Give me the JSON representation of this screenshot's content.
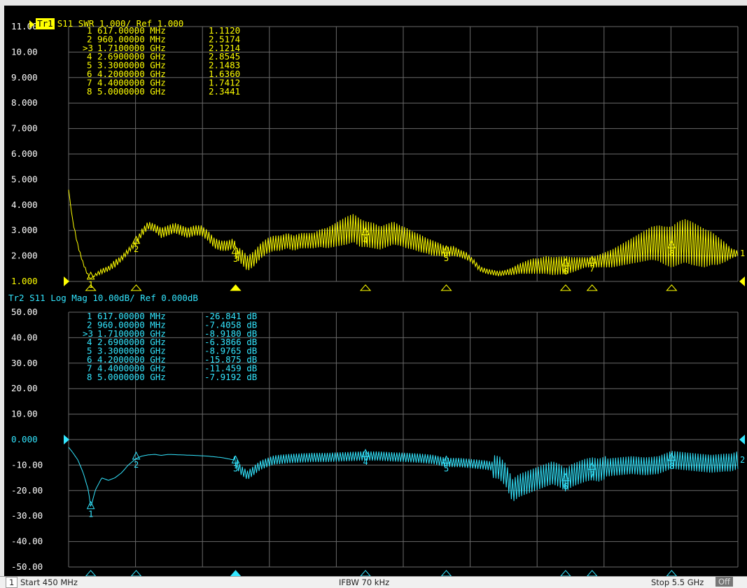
{
  "trace1": {
    "badge": "Tr1",
    "title": "S11 SWR 1.000/ Ref 1.000",
    "color": "#ffff00",
    "yticks": [
      "11.00",
      "10.00",
      "9.000",
      "8.000",
      "7.000",
      "6.000",
      "5.000",
      "4.000",
      "3.000",
      "2.000",
      "1.000"
    ],
    "end_label": "1",
    "markers": [
      {
        "id": "1",
        "freq": "617.00000 MHz",
        "value": "1.1120"
      },
      {
        "id": "2",
        "freq": "960.00000 MHz",
        "value": "2.5174"
      },
      {
        "id": ">3",
        "freq": "1.7100000 GHz",
        "value": "2.1214"
      },
      {
        "id": "4",
        "freq": "2.6900000 GHz",
        "value": "2.8545"
      },
      {
        "id": "5",
        "freq": "3.3000000 GHz",
        "value": "2.1483"
      },
      {
        "id": "6",
        "freq": "4.2000000 GHz",
        "value": "1.6360"
      },
      {
        "id": "7",
        "freq": "4.4000000 GHz",
        "value": "1.7412"
      },
      {
        "id": "8",
        "freq": "5.0000000 GHz",
        "value": "2.3441"
      }
    ]
  },
  "trace2": {
    "title": "Tr2 S11 Log Mag 10.00dB/ Ref 0.000dB",
    "color": "#33e6ff",
    "yticks": [
      "50.00",
      "40.00",
      "30.00",
      "20.00",
      "10.00",
      "0.000",
      "-10.00",
      "-20.00",
      "-30.00",
      "-40.00",
      "-50.00"
    ],
    "end_label": "2",
    "markers": [
      {
        "id": "1",
        "freq": "617.00000 MHz",
        "value": "-26.841 dB"
      },
      {
        "id": "2",
        "freq": "960.00000 MHz",
        "value": "-7.4058 dB"
      },
      {
        "id": ">3",
        "freq": "1.7100000 GHz",
        "value": "-8.9180 dB"
      },
      {
        "id": "4",
        "freq": "2.6900000 GHz",
        "value": "-6.3866 dB"
      },
      {
        "id": "5",
        "freq": "3.3000000 GHz",
        "value": "-8.9765 dB"
      },
      {
        "id": "6",
        "freq": "4.2000000 GHz",
        "value": "-15.875 dB"
      },
      {
        "id": "7",
        "freq": "4.4000000 GHz",
        "value": "-11.459 dB"
      },
      {
        "id": "8",
        "freq": "5.0000000 GHz",
        "value": "-7.9192 dB"
      }
    ]
  },
  "status": {
    "channel": "1",
    "start": "Start 450 MHz",
    "ifbw": "IFBW 70 kHz",
    "stop": "Stop 5.5 GHz",
    "off": "Off"
  },
  "chart_data": [
    {
      "type": "line",
      "title": "S11 SWR 1.000/ Ref 1.000",
      "xlim_mhz": [
        450,
        5500
      ],
      "ylim": [
        1,
        11
      ],
      "grid": true,
      "color": "#ffff00",
      "markers_mhz": [
        617,
        960,
        1710,
        2690,
        3300,
        4200,
        4400,
        5000
      ],
      "markers_y": [
        1.112,
        2.5174,
        2.1214,
        2.8545,
        2.1483,
        1.636,
        1.7412,
        2.3441
      ],
      "x_mhz": [
        450,
        480,
        520,
        560,
        600,
        617,
        650,
        700,
        750,
        800,
        850,
        900,
        960,
        1000,
        1050,
        1100,
        1150,
        1200,
        1250,
        1300,
        1350,
        1400,
        1450,
        1500,
        1550,
        1600,
        1650,
        1700,
        1710,
        1750,
        1800,
        1850,
        1900,
        1950,
        2000,
        2050,
        2100,
        2150,
        2200,
        2250,
        2300,
        2350,
        2400,
        2450,
        2500,
        2550,
        2600,
        2650,
        2690,
        2750,
        2800,
        2850,
        2900,
        2950,
        3000,
        3050,
        3100,
        3150,
        3200,
        3250,
        3300,
        3350,
        3400,
        3450,
        3500,
        3550,
        3600,
        3650,
        3700,
        3750,
        3800,
        3850,
        3900,
        3950,
        4000,
        4050,
        4100,
        4150,
        4200,
        4250,
        4300,
        4350,
        4400,
        4450,
        4500,
        4550,
        4600,
        4650,
        4700,
        4750,
        4800,
        4850,
        4900,
        4950,
        5000,
        5050,
        5100,
        5150,
        5200,
        5250,
        5300,
        5350,
        5400,
        5450,
        5500
      ],
      "y": [
        4.6,
        3.4,
        2.4,
        1.7,
        1.2,
        1.112,
        1.25,
        1.4,
        1.5,
        1.7,
        1.9,
        2.2,
        2.5174,
        2.9,
        3.2,
        3.1,
        2.9,
        3.0,
        3.1,
        3.0,
        2.9,
        3.0,
        3.0,
        2.8,
        2.5,
        2.4,
        2.4,
        2.5,
        2.1214,
        2.0,
        1.7,
        1.9,
        2.2,
        2.4,
        2.5,
        2.5,
        2.6,
        2.5,
        2.6,
        2.6,
        2.6,
        2.7,
        2.7,
        2.8,
        2.9,
        3.0,
        3.1,
        2.9,
        2.8545,
        2.8,
        2.7,
        2.8,
        2.9,
        2.8,
        2.7,
        2.6,
        2.5,
        2.4,
        2.3,
        2.25,
        2.1483,
        2.2,
        2.1,
        2.0,
        1.8,
        1.5,
        1.4,
        1.35,
        1.3,
        1.35,
        1.4,
        1.5,
        1.55,
        1.6,
        1.6,
        1.65,
        1.6,
        1.62,
        1.636,
        1.65,
        1.7,
        1.75,
        1.7412,
        1.8,
        1.85,
        1.9,
        2.0,
        2.1,
        2.2,
        2.3,
        2.4,
        2.5,
        2.5,
        2.4,
        2.3441,
        2.5,
        2.6,
        2.5,
        2.4,
        2.3,
        2.3,
        2.2,
        2.15,
        2.1,
        2.1
      ],
      "ripple": [
        0,
        0.05,
        0.05,
        0.05,
        0.05,
        0,
        0.05,
        0.1,
        0.1,
        0.15,
        0.1,
        0.1,
        0.1,
        0.15,
        0.15,
        0.15,
        0.2,
        0.2,
        0.2,
        0.2,
        0.2,
        0.2,
        0.2,
        0.2,
        0.2,
        0.2,
        0.2,
        0.2,
        0.2,
        0.3,
        0.3,
        0.3,
        0.3,
        0.3,
        0.3,
        0.3,
        0.3,
        0.3,
        0.3,
        0.3,
        0.3,
        0.35,
        0.4,
        0.45,
        0.5,
        0.55,
        0.55,
        0.55,
        0.5,
        0.5,
        0.45,
        0.45,
        0.45,
        0.4,
        0.4,
        0.35,
        0.35,
        0.3,
        0.3,
        0.25,
        0.2,
        0.2,
        0.15,
        0.15,
        0.1,
        0.1,
        0.1,
        0.1,
        0.1,
        0.1,
        0.15,
        0.2,
        0.25,
        0.3,
        0.3,
        0.35,
        0.35,
        0.35,
        0.35,
        0.3,
        0.25,
        0.2,
        0.2,
        0.25,
        0.3,
        0.35,
        0.4,
        0.45,
        0.5,
        0.55,
        0.6,
        0.65,
        0.7,
        0.75,
        0.8,
        0.85,
        0.85,
        0.85,
        0.8,
        0.75,
        0.65,
        0.55,
        0.4,
        0.2,
        0.1
      ]
    },
    {
      "type": "line",
      "title": "Tr2 S11 Log Mag 10.00dB/ Ref 0.000dB",
      "xlim_mhz": [
        450,
        5500
      ],
      "ylim": [
        -50,
        50
      ],
      "grid": true,
      "color": "#33e6ff",
      "markers_mhz": [
        617,
        960,
        1710,
        2690,
        3300,
        4200,
        4400,
        5000
      ],
      "markers_y": [
        -26.841,
        -7.4058,
        -8.918,
        -6.3866,
        -8.9765,
        -15.875,
        -11.459,
        -7.9192
      ],
      "x_mhz": [
        450,
        480,
        520,
        560,
        600,
        617,
        650,
        700,
        750,
        800,
        850,
        900,
        960,
        1000,
        1050,
        1100,
        1150,
        1200,
        1300,
        1400,
        1500,
        1600,
        1650,
        1700,
        1710,
        1750,
        1800,
        1850,
        1900,
        2000,
        2100,
        2200,
        2300,
        2400,
        2500,
        2600,
        2690,
        2800,
        2900,
        3000,
        3100,
        3200,
        3300,
        3400,
        3500,
        3600,
        3700,
        3750,
        3800,
        3850,
        3900,
        3950,
        4000,
        4050,
        4100,
        4150,
        4200,
        4250,
        4300,
        4350,
        4400,
        4450,
        4500,
        4600,
        4700,
        4800,
        4900,
        5000,
        5100,
        5200,
        5300,
        5400,
        5450,
        5500
      ],
      "y": [
        -3,
        -5,
        -8,
        -13,
        -20,
        -26.841,
        -20,
        -15,
        -16,
        -15,
        -13,
        -10,
        -7.4058,
        -6.5,
        -6,
        -5.8,
        -6.2,
        -5.8,
        -6,
        -6.2,
        -6.5,
        -7,
        -7.5,
        -8,
        -8.918,
        -12,
        -14,
        -12,
        -10,
        -8,
        -7.5,
        -7.2,
        -7,
        -7,
        -6.8,
        -6.6,
        -6.3866,
        -6.5,
        -6.8,
        -7,
        -7.3,
        -7.8,
        -8.9765,
        -9,
        -9.5,
        -10,
        -11,
        -14,
        -20,
        -18,
        -17,
        -16,
        -15,
        -14,
        -13,
        -14,
        -15.875,
        -14,
        -13,
        -12,
        -11.459,
        -12,
        -11,
        -10.5,
        -10,
        -10.5,
        -10,
        -7.9192,
        -8.5,
        -9,
        -9.5,
        -9,
        -9,
        -8
      ]
    }
  ]
}
